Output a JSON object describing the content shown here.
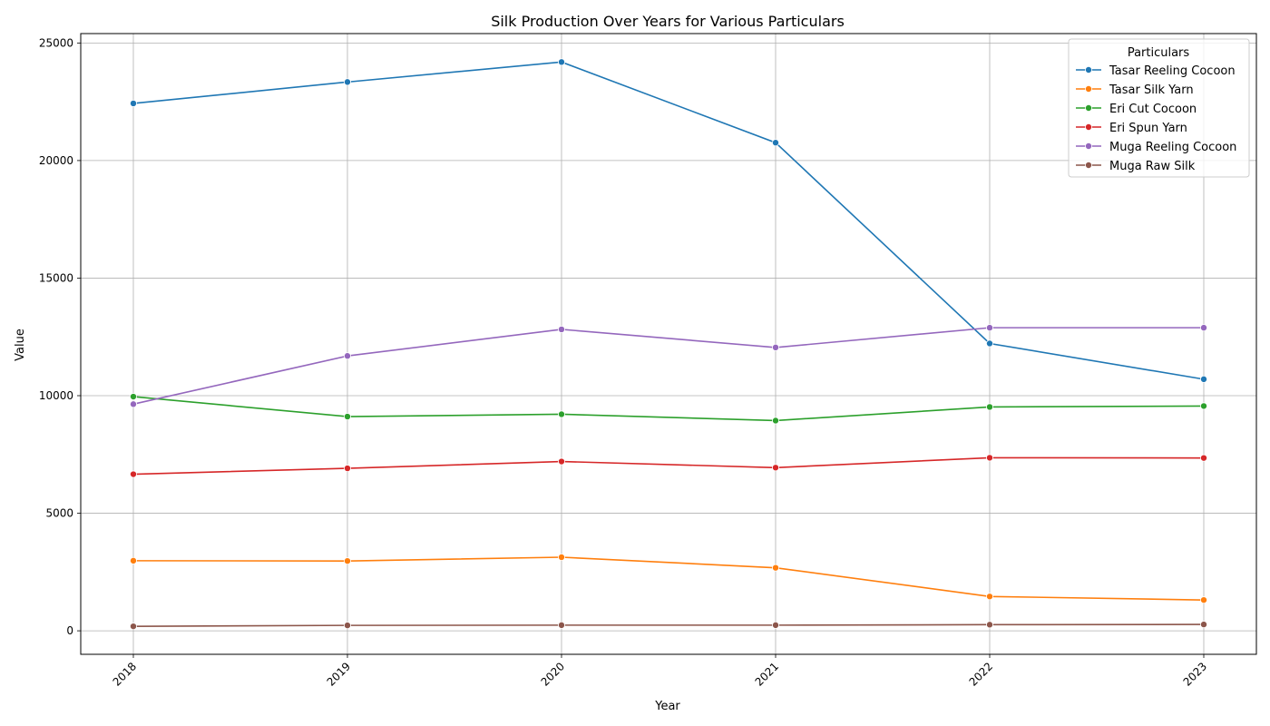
{
  "chart_data": {
    "type": "line",
    "title": "Silk Production Over Years for Various Particulars",
    "xlabel": "Year",
    "ylabel": "Value",
    "x": [
      "2018",
      "2019",
      "2020",
      "2021",
      "2022",
      "2023"
    ],
    "ylim": [
      -1000,
      25400
    ],
    "yticks": [
      0,
      5000,
      10000,
      15000,
      20000,
      25000
    ],
    "grid": true,
    "legend": {
      "title": "Particulars",
      "placement": "top-right"
    },
    "series": [
      {
        "name": "Tasar Reeling Cocoon",
        "color": "#1f77b4",
        "values": [
          22430,
          23340,
          24190,
          20760,
          12220,
          10700
        ]
      },
      {
        "name": "Tasar Silk Yarn",
        "color": "#ff7f0e",
        "values": [
          2980,
          2970,
          3130,
          2680,
          1460,
          1310
        ]
      },
      {
        "name": "Eri Cut Cocoon",
        "color": "#2ca02c",
        "values": [
          9960,
          9110,
          9210,
          8940,
          9520,
          9560
        ]
      },
      {
        "name": "Eri Spun Yarn",
        "color": "#d62728",
        "values": [
          6660,
          6910,
          7200,
          6940,
          7360,
          7350
        ]
      },
      {
        "name": "Muga Reeling Cocoon",
        "color": "#9467bd",
        "values": [
          9640,
          11690,
          12820,
          12050,
          12890,
          12890
        ]
      },
      {
        "name": "Muga Raw Silk",
        "color": "#8c564b",
        "values": [
          190,
          230,
          240,
          240,
          260,
          270
        ]
      }
    ]
  }
}
